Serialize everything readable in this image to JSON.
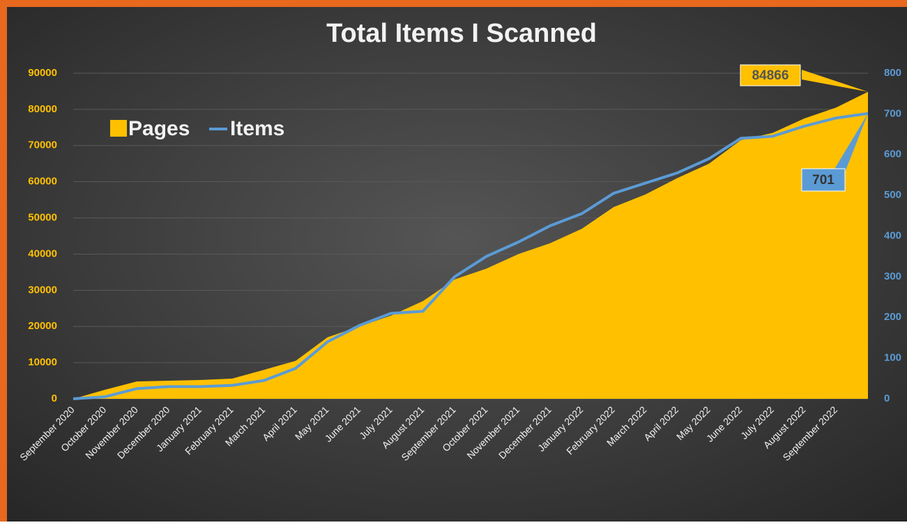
{
  "chart_data": {
    "type": "area-line",
    "title": "Total Items I Scanned",
    "categories": [
      "September 2020",
      "October 2020",
      "November 2020",
      "December 2020",
      "January 2021",
      "February 2021",
      "March 2021",
      "April 2021",
      "May 2021",
      "June 2021",
      "July 2021",
      "August 2021",
      "September 2021",
      "October 2021",
      "November 2021",
      "December 2021",
      "January 2022",
      "February 2022",
      "March 2022",
      "April 2022",
      "May 2022",
      "June 2022",
      "July 2022",
      "August 2022",
      "September 2022",
      null
    ],
    "series": [
      {
        "name": "Pages",
        "color": "#ffc000",
        "values": [
          0,
          2500,
          4800,
          5000,
          5200,
          5600,
          8000,
          10500,
          17000,
          20000,
          23000,
          27000,
          33000,
          36000,
          40000,
          43000,
          47000,
          53000,
          56500,
          61000,
          65000,
          71500,
          73500,
          77500,
          80500,
          84866
        ]
      },
      {
        "name": "Items",
        "color": "#5b9bd5",
        "axis": "y2",
        "values": [
          0,
          5,
          25,
          30,
          30,
          33,
          45,
          75,
          140,
          180,
          210,
          215,
          300,
          350,
          385,
          425,
          455,
          505,
          530,
          555,
          590,
          640,
          645,
          670,
          690,
          701
        ]
      }
    ],
    "ylim": [
      0,
      90000
    ],
    "yticks": [
      0,
      10000,
      20000,
      30000,
      40000,
      50000,
      60000,
      70000,
      80000,
      90000
    ],
    "y2lim": [
      0,
      800
    ],
    "y2ticks": [
      0,
      100,
      200,
      300,
      400,
      500,
      600,
      700,
      800
    ],
    "grid": true,
    "legend": "top-left"
  }
}
